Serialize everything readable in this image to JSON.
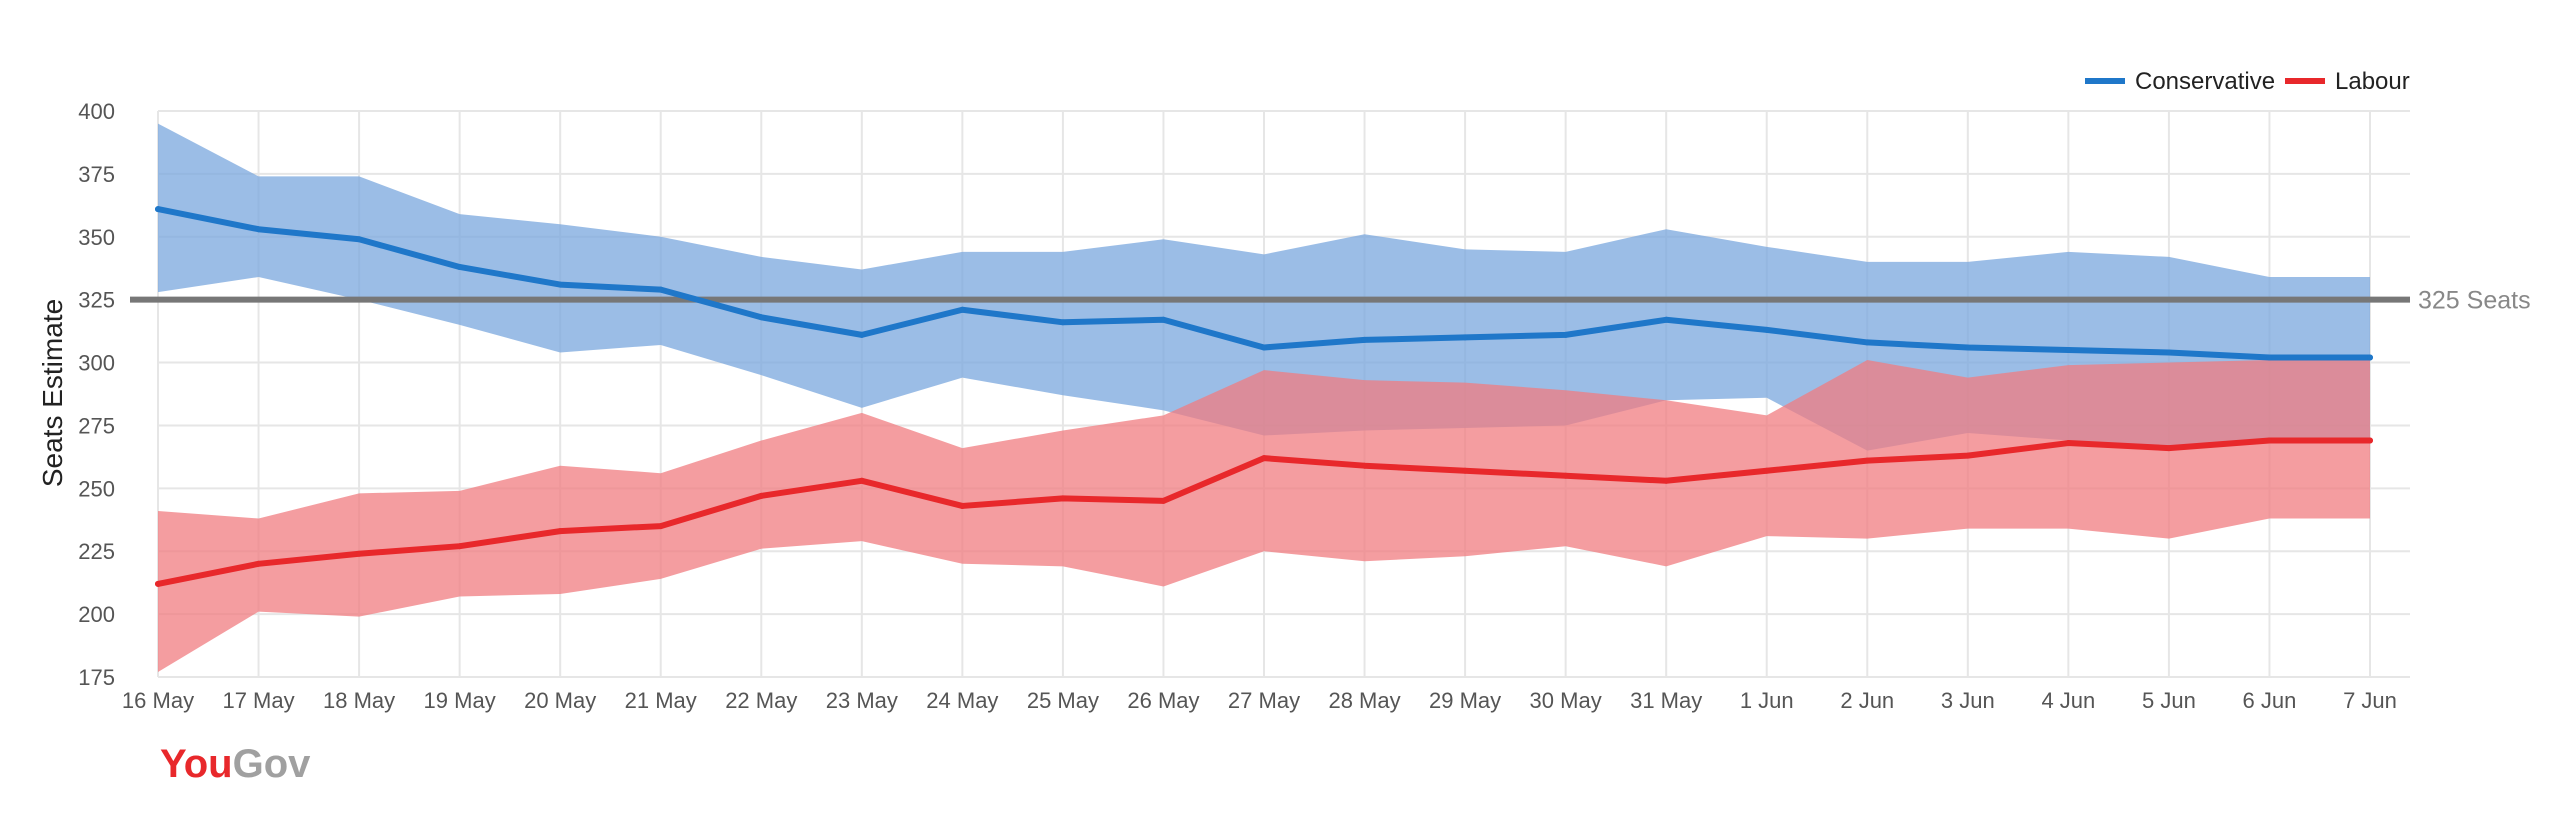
{
  "chart_data": {
    "type": "line",
    "title": "",
    "xlabel": "",
    "ylabel": "Seats Estimate",
    "ylim": [
      175,
      400
    ],
    "yticks": [
      175,
      200,
      225,
      250,
      275,
      300,
      325,
      350,
      375,
      400
    ],
    "grid": true,
    "legend_position": "top-right",
    "categories": [
      "16 May",
      "17 May",
      "18 May",
      "19 May",
      "20 May",
      "21 May",
      "22 May",
      "23 May",
      "24 May",
      "25 May",
      "26 May",
      "27 May",
      "28 May",
      "29 May",
      "30 May",
      "31 May",
      "1 Jun",
      "2 Jun",
      "3 Jun",
      "4 Jun",
      "5 Jun",
      "6 Jun",
      "7 Jun"
    ],
    "series": [
      {
        "name": "Conservative",
        "color": "#1f77c9",
        "band_color": "#7aa7de",
        "values": [
          361,
          353,
          349,
          338,
          331,
          329,
          318,
          311,
          321,
          316,
          317,
          306,
          309,
          310,
          311,
          317,
          313,
          308,
          306,
          305,
          304,
          302,
          302
        ],
        "upper": [
          395,
          374,
          374,
          359,
          355,
          350,
          342,
          337,
          344,
          344,
          349,
          343,
          351,
          345,
          344,
          353,
          346,
          340,
          340,
          344,
          342,
          334,
          334
        ],
        "lower": [
          328,
          334,
          325,
          315,
          304,
          307,
          295,
          282,
          294,
          287,
          281,
          271,
          273,
          274,
          275,
          285,
          286,
          265,
          272,
          269,
          267,
          270,
          270
        ]
      },
      {
        "name": "Labour",
        "color": "#e8282b",
        "band_color": "#f07c80",
        "values": [
          212,
          220,
          224,
          227,
          233,
          235,
          247,
          253,
          243,
          246,
          245,
          262,
          259,
          257,
          255,
          253,
          257,
          261,
          263,
          268,
          266,
          269,
          269
        ],
        "upper": [
          241,
          238,
          248,
          249,
          259,
          256,
          269,
          280,
          266,
          273,
          279,
          297,
          293,
          292,
          289,
          285,
          279,
          301,
          294,
          299,
          300,
          301,
          301
        ],
        "lower": [
          177,
          201,
          199,
          207,
          208,
          214,
          226,
          229,
          220,
          219,
          211,
          225,
          221,
          223,
          227,
          219,
          231,
          230,
          234,
          234,
          230,
          238,
          238
        ]
      }
    ],
    "reference_line": {
      "value": 325,
      "label": "325 Seats",
      "color": "#777777"
    }
  },
  "branding": {
    "logo_you": "You",
    "logo_gov": "Gov"
  }
}
